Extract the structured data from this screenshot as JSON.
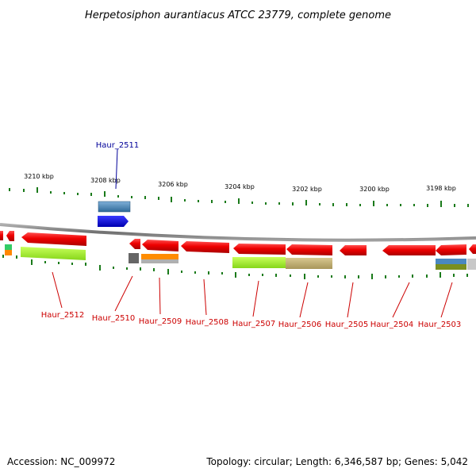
{
  "title": "Herpetosiphon aurantiacus ATCC 23779, complete genome",
  "footer": {
    "accession": "Accession: NC_009972",
    "summary": "Topology: circular; Length: 6,346,587 bp; Genes: 5,042"
  },
  "ruler": {
    "labels": [
      "3210 kbp",
      "3208 kbp",
      "3206 kbp",
      "3204 kbp",
      "3202 kbp",
      "3200 kbp",
      "3198 kbp"
    ]
  },
  "colors": {
    "backbone": "#808080",
    "gene_forward": "#0000e0",
    "gene_reverse": "#ee0000",
    "tick": "#1a7a1a",
    "label_red": "#cc0000",
    "label_blue": "#000099"
  },
  "genes": [
    {
      "label": "Haur_2512",
      "strand": "reverse",
      "label_color": "red"
    },
    {
      "label": "Haur_2511",
      "strand": "forward",
      "label_color": "blue"
    },
    {
      "label": "Haur_2510",
      "strand": "reverse",
      "label_color": "red"
    },
    {
      "label": "Haur_2509",
      "strand": "reverse",
      "label_color": "red"
    },
    {
      "label": "Haur_2508",
      "strand": "reverse",
      "label_color": "red"
    },
    {
      "label": "Haur_2507",
      "strand": "reverse",
      "label_color": "red"
    },
    {
      "label": "Haur_2506",
      "strand": "reverse",
      "label_color": "red"
    },
    {
      "label": "Haur_2505",
      "strand": "reverse",
      "label_color": "red"
    },
    {
      "label": "Haur_2504",
      "strand": "reverse",
      "label_color": "red"
    },
    {
      "label": "Haur_2503",
      "strand": "reverse",
      "label_color": "red"
    }
  ]
}
